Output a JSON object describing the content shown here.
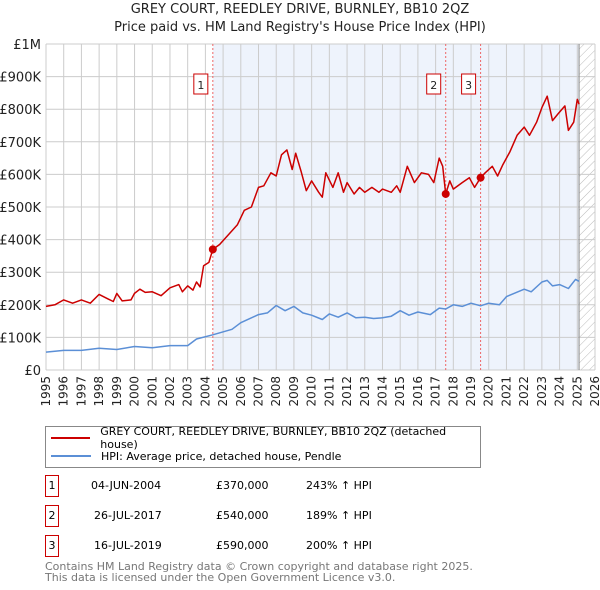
{
  "chart_data": {
    "type": "line",
    "title": "GREY COURT, REEDLEY DRIVE, BURNLEY, BB10 2QZ",
    "subtitle": "Price paid vs. HM Land Registry's House Price Index (HPI)",
    "xlim": [
      1995,
      2026
    ],
    "ylim": [
      0,
      1000000
    ],
    "x_ticks": [
      "1995",
      "1996",
      "1997",
      "1998",
      "1999",
      "2000",
      "2001",
      "2002",
      "2003",
      "2004",
      "2005",
      "2006",
      "2007",
      "2008",
      "2009",
      "2010",
      "2011",
      "2012",
      "2013",
      "2014",
      "2015",
      "2016",
      "2017",
      "2018",
      "2019",
      "2020",
      "2021",
      "2022",
      "2023",
      "2024",
      "2025",
      "2026"
    ],
    "y_ticks": [
      {
        "v": 0,
        "label": "£0"
      },
      {
        "v": 100000,
        "label": "£100K"
      },
      {
        "v": 200000,
        "label": "£200K"
      },
      {
        "v": 300000,
        "label": "£300K"
      },
      {
        "v": 400000,
        "label": "£400K"
      },
      {
        "v": 500000,
        "label": "£500K"
      },
      {
        "v": 600000,
        "label": "£600K"
      },
      {
        "v": 700000,
        "label": "£700K"
      },
      {
        "v": 800000,
        "label": "£800K"
      },
      {
        "v": 900000,
        "label": "£900K"
      },
      {
        "v": 1000000,
        "label": "£1M"
      }
    ],
    "grid": true,
    "shaded_range": [
      2004.42,
      2025.1
    ],
    "forecast_hatch_from": 2025.1,
    "series": [
      {
        "name": "GREY COURT, REEDLEY DRIVE, BURNLEY, BB10 2QZ (detached house)",
        "color": "#cc0000",
        "x": [
          1995,
          1995.5,
          1996,
          1996.5,
          1997,
          1997.5,
          1998,
          1998.5,
          1998.8,
          1999,
          1999.3,
          1999.8,
          2000,
          2000.3,
          2000.6,
          2001,
          2001.5,
          2002,
          2002.5,
          2002.7,
          2003,
          2003.3,
          2003.5,
          2003.7,
          2003.9,
          2004.2,
          2004.42,
          2004.8,
          2005.3,
          2005.8,
          2006.2,
          2006.6,
          2007,
          2007.3,
          2007.7,
          2008,
          2008.3,
          2008.6,
          2008.9,
          2009.1,
          2009.4,
          2009.7,
          2010,
          2010.4,
          2010.6,
          2010.8,
          2011.2,
          2011.5,
          2011.8,
          2012,
          2012.4,
          2012.7,
          2013,
          2013.4,
          2013.8,
          2014,
          2014.5,
          2014.8,
          2015,
          2015.4,
          2015.8,
          2016.2,
          2016.6,
          2016.9,
          2017.2,
          2017.4,
          2017.57,
          2017.8,
          2018,
          2018.5,
          2018.9,
          2019.2,
          2019.54,
          2019.8,
          2020.2,
          2020.5,
          2020.8,
          2021.2,
          2021.6,
          2022,
          2022.3,
          2022.7,
          2023,
          2023.3,
          2023.6,
          2023.9,
          2024.3,
          2024.5,
          2024.8,
          2025,
          2025.1
        ],
        "y": [
          195000,
          200000,
          215000,
          205000,
          215000,
          205000,
          232000,
          218000,
          210000,
          235000,
          212000,
          215000,
          235000,
          248000,
          238000,
          240000,
          228000,
          252000,
          262000,
          240000,
          258000,
          245000,
          270000,
          255000,
          320000,
          330000,
          370000,
          385000,
          415000,
          445000,
          490000,
          500000,
          560000,
          565000,
          605000,
          595000,
          660000,
          675000,
          615000,
          665000,
          610000,
          550000,
          580000,
          545000,
          530000,
          605000,
          560000,
          605000,
          545000,
          575000,
          540000,
          560000,
          545000,
          560000,
          545000,
          555000,
          545000,
          565000,
          545000,
          625000,
          575000,
          605000,
          600000,
          575000,
          650000,
          625000,
          540000,
          580000,
          555000,
          575000,
          590000,
          560000,
          590000,
          605000,
          625000,
          595000,
          630000,
          670000,
          720000,
          745000,
          720000,
          760000,
          805000,
          840000,
          765000,
          785000,
          810000,
          735000,
          760000,
          830000,
          815000
        ]
      },
      {
        "name": "HPI: Average price, detached house, Pendle",
        "color": "#5b8fd6",
        "x": [
          1995,
          1996,
          1997,
          1998,
          1999,
          2000,
          2001,
          2002,
          2003,
          2003.5,
          2004.42,
          2005.5,
          2006,
          2007,
          2007.5,
          2008,
          2008.5,
          2009,
          2009.5,
          2010,
          2010.6,
          2011,
          2011.5,
          2012,
          2012.5,
          2013,
          2013.5,
          2014,
          2014.5,
          2015,
          2015.5,
          2016,
          2016.7,
          2017.2,
          2017.57,
          2018,
          2018.5,
          2019,
          2019.54,
          2020,
          2020.6,
          2021,
          2022,
          2022.4,
          2023,
          2023.3,
          2023.6,
          2024,
          2024.5,
          2024.9,
          2025.1
        ],
        "y": [
          55000,
          60000,
          60000,
          67000,
          63000,
          72000,
          68000,
          75000,
          75000,
          95000,
          108000,
          125000,
          145000,
          170000,
          175000,
          198000,
          182000,
          195000,
          175000,
          168000,
          155000,
          172000,
          162000,
          175000,
          160000,
          162000,
          158000,
          160000,
          165000,
          182000,
          168000,
          178000,
          170000,
          190000,
          187000,
          200000,
          195000,
          205000,
          197000,
          205000,
          200000,
          225000,
          248000,
          240000,
          270000,
          275000,
          258000,
          262000,
          250000,
          278000,
          272000
        ]
      }
    ],
    "markers": [
      {
        "label": "1",
        "x": 2004.42,
        "y": 370000
      },
      {
        "label": "2",
        "x": 2017.57,
        "y": 540000
      },
      {
        "label": "3",
        "x": 2019.54,
        "y": 590000
      }
    ]
  },
  "legend": {
    "red_label": "GREY COURT, REEDLEY DRIVE, BURNLEY, BB10 2QZ (detached house)",
    "blue_label": "HPI: Average price, detached house, Pendle"
  },
  "transactions": [
    {
      "num": "1",
      "date": "04-JUN-2004",
      "price": "£370,000",
      "hpi": "243% ↑ HPI"
    },
    {
      "num": "2",
      "date": "26-JUL-2017",
      "price": "£540,000",
      "hpi": "189% ↑ HPI"
    },
    {
      "num": "3",
      "date": "16-JUL-2019",
      "price": "£590,000",
      "hpi": "200% ↑ HPI"
    }
  ],
  "footer": {
    "line1": "Contains HM Land Registry data © Crown copyright and database right 2025.",
    "line2": "This data is licensed under the Open Government Licence v3.0."
  }
}
